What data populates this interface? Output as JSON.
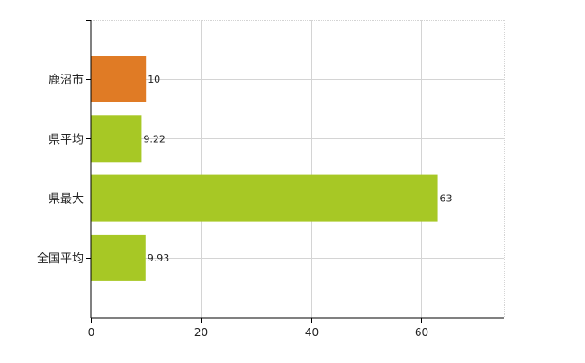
{
  "chart_data": {
    "type": "bar",
    "orientation": "horizontal",
    "categories": [
      "鹿沼市",
      "県平均",
      "県最大",
      "全国平均"
    ],
    "values": [
      10,
      9.22,
      63,
      9.93
    ],
    "data_labels": [
      "10",
      "9.22",
      "63",
      "9.93"
    ],
    "colors": [
      "#e07b25",
      "#a7c825",
      "#a7c825",
      "#a7c825"
    ],
    "xlim": [
      0,
      75
    ],
    "xticks": [
      0,
      20,
      40,
      60
    ],
    "xtick_labels": [
      "0",
      "20",
      "40",
      "60"
    ],
    "grid": true,
    "title": "",
    "xlabel": "",
    "ylabel": ""
  }
}
